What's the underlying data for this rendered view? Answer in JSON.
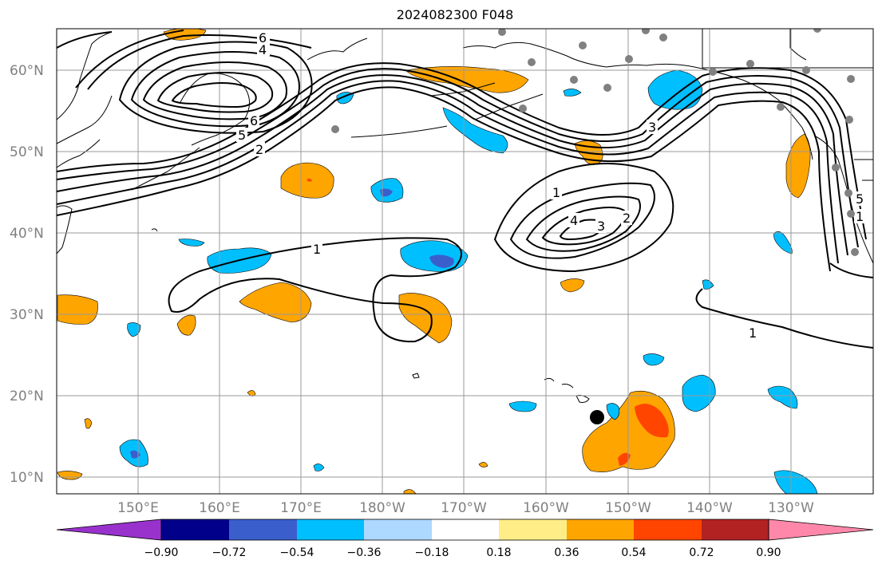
{
  "title": "2024082300 F048",
  "latitude_labels": [
    "60°N",
    "50°N",
    "40°N",
    "30°N",
    "20°N",
    "10°N"
  ],
  "longitude_labels": [
    "150°E",
    "160°E",
    "170°E",
    "180°W",
    "170°W",
    "160°W",
    "150°W",
    "140°W",
    "130°W"
  ],
  "colorbar": {
    "colors": [
      "#9932cc",
      "#00008b",
      "#3a5fcd",
      "#00bfff",
      "#add8ff",
      "#ffffff",
      "#ffee88",
      "#ffa500",
      "#ff4500",
      "#b22222",
      "#ff88aa"
    ],
    "tick_labels": [
      "−0.90",
      "−0.72",
      "−0.54",
      "−0.36",
      "−0.18",
      "0.18",
      "0.36",
      "0.54",
      "0.72",
      "0.90"
    ]
  },
  "contour_labels": [
    "6",
    "4",
    "5",
    "6",
    "2",
    "1",
    "3",
    "1",
    "4",
    "3",
    "2",
    "1",
    "1",
    "5"
  ],
  "colors": {
    "negative_light": "#00bfff",
    "negative_mid": "#3a5fcd",
    "positive_light": "#ffa500",
    "positive_strong": "#ff4500",
    "grid": "#999999",
    "station_dot": "#808080"
  }
}
